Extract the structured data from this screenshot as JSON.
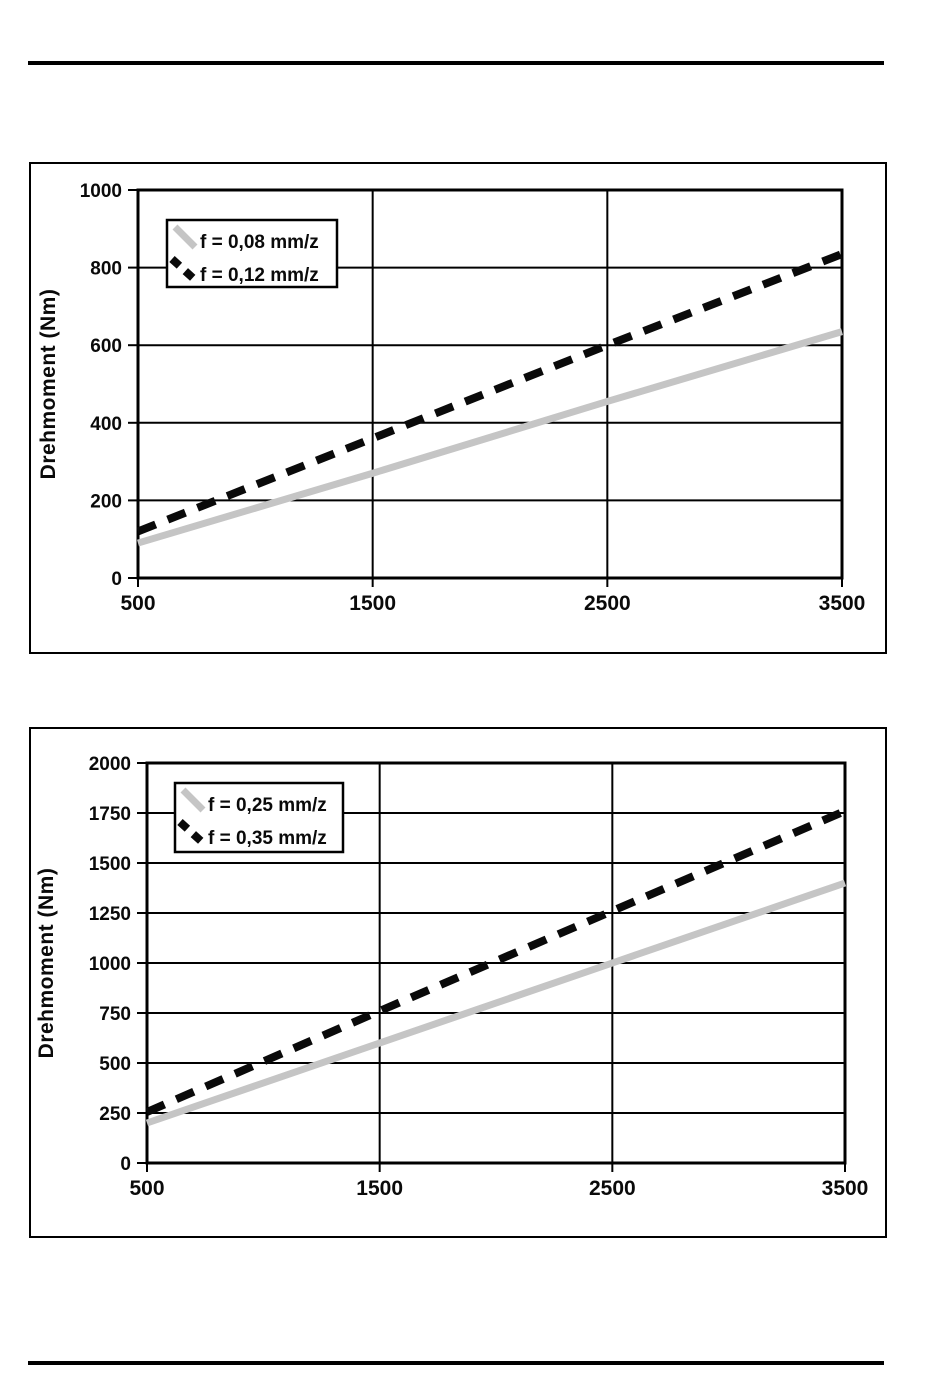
{
  "page": {
    "background": "#ffffff",
    "rule_color": "#000000"
  },
  "chart_data": [
    {
      "type": "line",
      "title": "",
      "xlabel": "",
      "ylabel": "Drehmoment (Nm)",
      "xlim": [
        500,
        3500
      ],
      "ylim": [
        0,
        1000
      ],
      "x_ticks": [
        "500",
        "1500",
        "2500",
        "3500"
      ],
      "x_tick_values": [
        500,
        1500,
        2500,
        3500
      ],
      "y_ticks": [
        "0",
        "200",
        "400",
        "600",
        "800",
        "1000"
      ],
      "y_tick_values": [
        0,
        200,
        400,
        600,
        800,
        1000
      ],
      "grid": true,
      "legend_position": "top-left",
      "series": [
        {
          "name": "f = 0,08 mm/z",
          "style": "solid",
          "color": "#c5c5c5",
          "width": 7,
          "x": [
            500,
            1500,
            2500,
            3500
          ],
          "y": [
            90,
            270,
            455,
            635
          ]
        },
        {
          "name": "f = 0,12 mm/z",
          "style": "dashed",
          "color": "#0a0a0a",
          "width": 8,
          "x": [
            500,
            1500,
            2500,
            3500
          ],
          "y": [
            120,
            360,
            600,
            835
          ]
        }
      ]
    },
    {
      "type": "line",
      "title": "",
      "xlabel": "",
      "ylabel": "Drehmoment (Nm)",
      "xlim": [
        500,
        3500
      ],
      "ylim": [
        0,
        2000
      ],
      "x_ticks": [
        "500",
        "1500",
        "2500",
        "3500"
      ],
      "x_tick_values": [
        500,
        1500,
        2500,
        3500
      ],
      "y_ticks": [
        "0",
        "250",
        "500",
        "750",
        "1000",
        "1250",
        "1500",
        "1750",
        "2000"
      ],
      "y_tick_values": [
        0,
        250,
        500,
        750,
        1000,
        1250,
        1500,
        1750,
        2000
      ],
      "grid": true,
      "legend_position": "top-left",
      "series": [
        {
          "name": "f = 0,25 mm/z",
          "style": "solid",
          "color": "#c5c5c5",
          "width": 7,
          "x": [
            500,
            1500,
            2500,
            3500
          ],
          "y": [
            200,
            600,
            1000,
            1400
          ]
        },
        {
          "name": "f = 0,35 mm/z",
          "style": "dashed",
          "color": "#0a0a0a",
          "width": 8,
          "x": [
            500,
            1500,
            2500,
            3500
          ],
          "y": [
            255,
            760,
            1260,
            1760
          ]
        }
      ]
    }
  ]
}
